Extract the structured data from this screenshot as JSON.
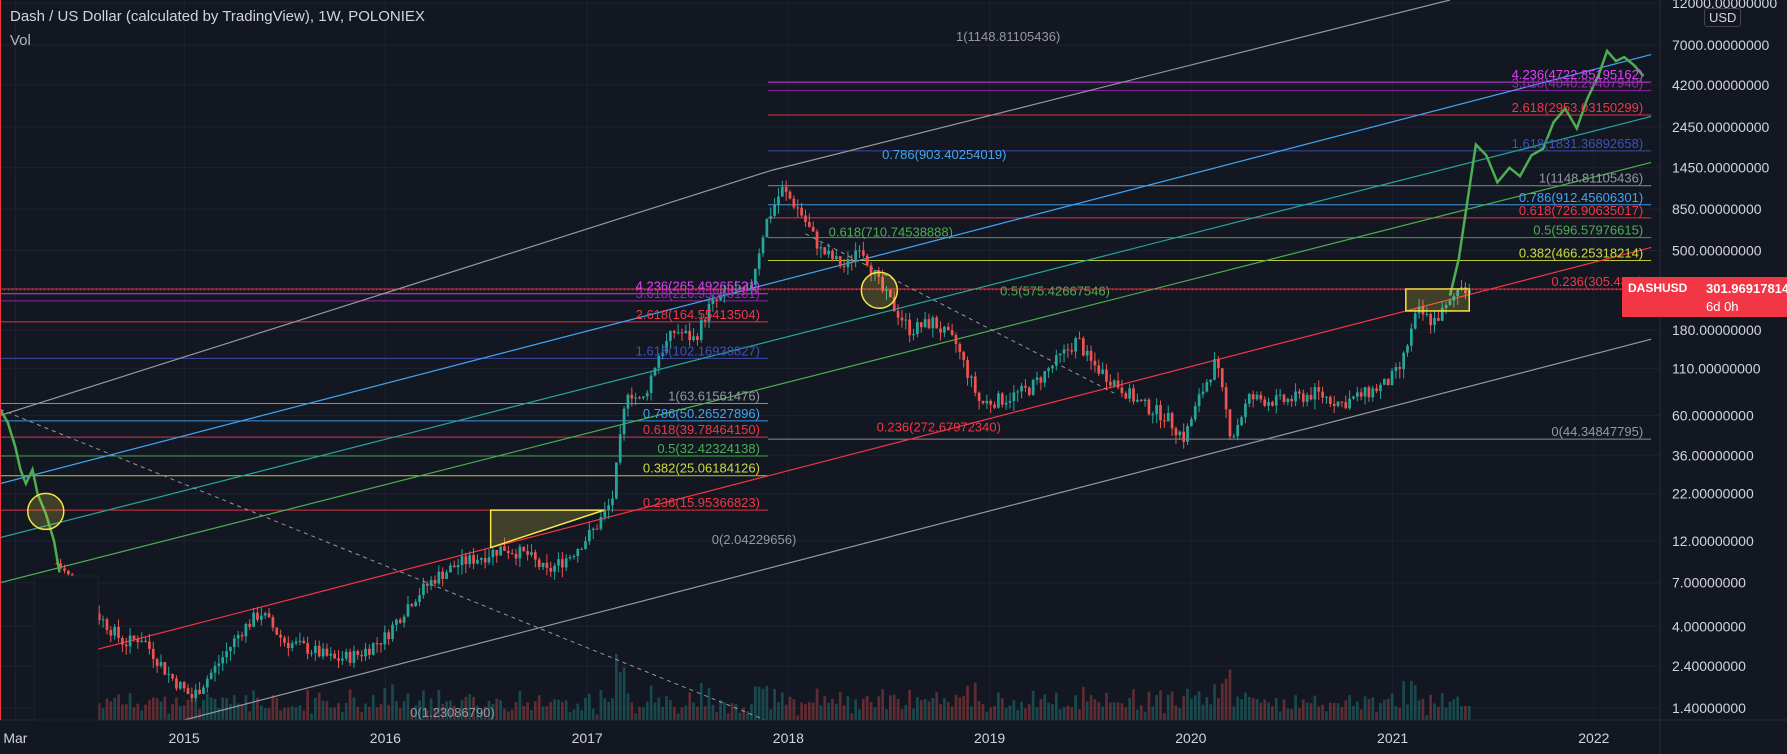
{
  "header": {
    "title": "Dash / US Dollar (calculated by TradingView), 1W, POLONIEX",
    "indicator": "Vol"
  },
  "currency_button": "USD",
  "price_tag": {
    "symbol": "DASHUSD",
    "price": "301.96917814",
    "countdown": "6d 0h",
    "color": "#f23645"
  },
  "colors": {
    "background": "#131722",
    "up": "#26a69a",
    "down": "#ef5350",
    "overlay_line": "#4caf50",
    "highlight": "#f5e642"
  },
  "chart_data": {
    "type": "candlestick",
    "y_scale": "log",
    "ylim": [
      1.2,
      12500
    ],
    "xlim": [
      "2014-02-01",
      "2022-05-01"
    ],
    "y_ticks": [
      {
        "value": 12000,
        "label": "12000.00000000"
      },
      {
        "value": 7000,
        "label": "7000.00000000"
      },
      {
        "value": 4200,
        "label": "4200.00000000"
      },
      {
        "value": 2450,
        "label": "2450.00000000"
      },
      {
        "value": 1450,
        "label": "1450.00000000"
      },
      {
        "value": 850,
        "label": "850.00000000"
      },
      {
        "value": 500,
        "label": "500.00000000"
      },
      {
        "value": 180,
        "label": "180.00000000"
      },
      {
        "value": 110,
        "label": "110.00000000"
      },
      {
        "value": 60,
        "label": "60.00000000"
      },
      {
        "value": 36,
        "label": "36.00000000"
      },
      {
        "value": 22,
        "label": "22.00000000"
      },
      {
        "value": 12,
        "label": "12.00000000"
      },
      {
        "value": 7,
        "label": "7.00000000"
      },
      {
        "value": 4,
        "label": "4.00000000"
      },
      {
        "value": 2.4,
        "label": "2.40000000"
      },
      {
        "value": 1.4,
        "label": "1.40000000"
      }
    ],
    "x_ticks": [
      {
        "date": "2014-03-01",
        "label": "Mar"
      },
      {
        "date": "2015-01-01",
        "label": "2015"
      },
      {
        "date": "2016-01-01",
        "label": "2016"
      },
      {
        "date": "2017-01-01",
        "label": "2017"
      },
      {
        "date": "2018-01-01",
        "label": "2018"
      },
      {
        "date": "2019-01-01",
        "label": "2019"
      },
      {
        "date": "2020-01-01",
        "label": "2020"
      },
      {
        "date": "2021-01-01",
        "label": "2021"
      },
      {
        "date": "2022-01-01",
        "label": "2022"
      }
    ],
    "price_path": [
      [
        "2014-05-15",
        9
      ],
      [
        "2014-06-15",
        7
      ],
      [
        "2014-08-01",
        4.5
      ],
      [
        "2014-09-15",
        3.2
      ],
      [
        "2014-10-15",
        3.5
      ],
      [
        "2014-12-01",
        2.2
      ],
      [
        "2015-01-15",
        1.6
      ],
      [
        "2015-03-01",
        2.4
      ],
      [
        "2015-04-15",
        3.8
      ],
      [
        "2015-05-20",
        4.8
      ],
      [
        "2015-07-01",
        3.3
      ],
      [
        "2015-08-15",
        3.0
      ],
      [
        "2015-10-01",
        2.6
      ],
      [
        "2015-11-15",
        2.8
      ],
      [
        "2016-01-01",
        3.5
      ],
      [
        "2016-02-15",
        5.5
      ],
      [
        "2016-04-01",
        7.5
      ],
      [
        "2016-05-15",
        9
      ],
      [
        "2016-07-01",
        10
      ],
      [
        "2016-08-01",
        11
      ],
      [
        "2016-09-15",
        10
      ],
      [
        "2016-10-20",
        8
      ],
      [
        "2016-12-01",
        10
      ],
      [
        "2017-01-15",
        14
      ],
      [
        "2017-02-15",
        20
      ],
      [
        "2017-03-15",
        85
      ],
      [
        "2017-04-10",
        70
      ],
      [
        "2017-05-10",
        130
      ],
      [
        "2017-06-10",
        180
      ],
      [
        "2017-07-15",
        160
      ],
      [
        "2017-08-10",
        240
      ],
      [
        "2017-09-15",
        300
      ],
      [
        "2017-10-20",
        280
      ],
      [
        "2017-11-20",
        700
      ],
      [
        "2017-12-20",
        1100
      ],
      [
        "2018-01-20",
        850
      ],
      [
        "2018-03-01",
        500
      ],
      [
        "2018-04-15",
        400
      ],
      [
        "2018-05-10",
        550
      ],
      [
        "2018-06-20",
        300
      ],
      [
        "2018-08-10",
        180
      ],
      [
        "2018-09-20",
        200
      ],
      [
        "2018-11-01",
        150
      ],
      [
        "2018-12-15",
        70
      ],
      [
        "2019-02-01",
        75
      ],
      [
        "2019-03-15",
        85
      ],
      [
        "2019-04-20",
        110
      ],
      [
        "2019-06-10",
        160
      ],
      [
        "2019-07-01",
        120
      ],
      [
        "2019-08-20",
        90
      ],
      [
        "2019-10-01",
        70
      ],
      [
        "2019-11-15",
        60
      ],
      [
        "2019-12-20",
        45
      ],
      [
        "2020-01-20",
        80
      ],
      [
        "2020-02-15",
        120
      ],
      [
        "2020-03-15",
        45
      ],
      [
        "2020-04-15",
        75
      ],
      [
        "2020-06-15",
        72
      ],
      [
        "2020-08-15",
        80
      ],
      [
        "2020-09-30",
        70
      ],
      [
        "2020-11-15",
        80
      ],
      [
        "2020-12-20",
        90
      ],
      [
        "2021-01-15",
        110
      ],
      [
        "2021-02-15",
        230
      ],
      [
        "2021-03-15",
        200
      ],
      [
        "2021-04-15",
        250
      ],
      [
        "2021-05-05",
        330
      ],
      [
        "2021-05-20",
        302
      ]
    ],
    "fib_levels": [
      {
        "label": "4.236(4722.85195162)",
        "value": 4350,
        "color": "#e040fb",
        "from": "2017-11-25",
        "to": "2022-04-15"
      },
      {
        "label": "3.618(4040.29407940)",
        "value": 3900,
        "color": "#9c27b0",
        "from": "2017-11-25",
        "to": "2022-04-15"
      },
      {
        "label": "2.618(2953.03150299)",
        "value": 2850,
        "color": "#f23645",
        "from": "2017-11-25",
        "to": "2022-04-15"
      },
      {
        "label": "1.618(1831.36892658)",
        "value": 1800,
        "color": "#3f51b5",
        "from": "2017-11-25",
        "to": "2022-04-15"
      },
      {
        "label": "1(1148.81105436)",
        "value": 1150,
        "color": "#9598a1",
        "from": "2017-11-25",
        "to": "2022-04-15"
      },
      {
        "label": "0.786(912.45606301)",
        "value": 900,
        "color": "#42a5f5",
        "from": "2017-11-25",
        "to": "2022-04-15"
      },
      {
        "label": "0.618(726.90635017)",
        "value": 760,
        "color": "#f23645",
        "from": "2017-11-25",
        "to": "2022-04-15"
      },
      {
        "label": "0.5(596.57976615)",
        "value": 590,
        "color": "#4caf50",
        "from": "2017-11-25",
        "to": "2022-04-15"
      },
      {
        "label": "0.382(466.25318214)",
        "value": 440,
        "color": "#cddc39",
        "from": "2017-11-25",
        "to": "2022-04-15"
      },
      {
        "label": "0.236(305.48...)",
        "value": 305,
        "color": "#f23645",
        "from": "2014-02-01",
        "to": "2022-04-15"
      },
      {
        "label": "0(44.34847795)",
        "value": 44.3,
        "color": "#9598a1",
        "from": "2017-11-25",
        "to": "2022-04-15"
      },
      {
        "label": "4.236(265.49265531)",
        "value": 287,
        "color": "#e040fb",
        "from": "2014-02-01",
        "to": "2017-11-25"
      },
      {
        "label": "3.618(226.93888181)",
        "value": 262,
        "color": "#9c27b0",
        "from": "2014-02-01",
        "to": "2017-11-25"
      },
      {
        "label": "2.618(164.55413504)",
        "value": 200,
        "color": "#f23645",
        "from": "2014-02-01",
        "to": "2017-11-25"
      },
      {
        "label": "1.618(102.16938827)",
        "value": 125,
        "color": "#3f51b5",
        "from": "2014-02-01",
        "to": "2017-11-25"
      },
      {
        "label": "1(63.61561476)",
        "value": 70,
        "color": "#9598a1",
        "from": "2014-02-01",
        "to": "2017-11-25"
      },
      {
        "label": "0.786(50.26527896)",
        "value": 56,
        "color": "#42a5f5",
        "from": "2014-02-01",
        "to": "2017-11-25"
      },
      {
        "label": "0.618(39.78464150)",
        "value": 45.5,
        "color": "#f23645",
        "from": "2014-02-01",
        "to": "2017-11-25"
      },
      {
        "label": "0.5(32.42324138)",
        "value": 35.7,
        "color": "#4caf50",
        "from": "2014-02-01",
        "to": "2017-11-25"
      },
      {
        "label": "0.382(25.06184126)",
        "value": 27.7,
        "color": "#cddc39",
        "from": "2014-02-01",
        "to": "2017-11-25"
      },
      {
        "label": "0.236(15.95366823)",
        "value": 17.8,
        "color": "#f23645",
        "from": "2014-02-01",
        "to": "2017-11-25"
      }
    ],
    "floating_labels": [
      {
        "text": "1(1148.81105436)",
        "date": "2018-11-01",
        "value": 7400,
        "color": "#9598a1"
      },
      {
        "text": "0.786(903.40254019)",
        "date": "2018-06-20",
        "value": 1620,
        "color": "#42a5f5"
      },
      {
        "text": "0.618(710.74538888)",
        "date": "2018-03-15",
        "value": 600,
        "color": "#4caf50"
      },
      {
        "text": "0.5(575.42667546)",
        "date": "2019-01-20",
        "value": 280,
        "color": "#4caf50"
      },
      {
        "text": "0.236(272.67972340)",
        "date": "2018-06-10",
        "value": 49,
        "color": "#f23645"
      },
      {
        "text": "0(2.04229656)",
        "date": "2017-08-15",
        "value": 11.5,
        "color": "#9598a1"
      },
      {
        "text": "0(1.23086790)",
        "date": "2016-02-15",
        "value": 1.25,
        "color": "#9598a1"
      }
    ],
    "channel_lines": [
      {
        "from": [
          "2014-02-01",
          60
        ],
        "to": [
          "2017-12-01",
          1400
        ],
        "color": "#9598a1"
      },
      {
        "from": [
          "2017-12-01",
          1400
        ],
        "to": [
          "2021-04-15",
          12500
        ],
        "color": "#9598a1"
      },
      {
        "from": [
          "2014-02-01",
          25
        ],
        "to": [
          "2022-04-15",
          6200
        ],
        "color": "#42a5f5"
      },
      {
        "from": [
          "2014-02-01",
          12.5
        ],
        "to": [
          "2022-04-15",
          2800
        ],
        "color": "#26a69a"
      },
      {
        "from": [
          "2014-02-01",
          7.0
        ],
        "to": [
          "2022-04-15",
          1550
        ],
        "color": "#4caf50"
      },
      {
        "from": [
          "2014-05-15",
          2.6
        ],
        "to": [
          "2022-04-15",
          520
        ],
        "color": "#f23645"
      },
      {
        "from": [
          "2015-01-01",
          1.2
        ],
        "to": [
          "2022-04-15",
          160
        ],
        "color": "#9598a1"
      }
    ],
    "dashed_lines": [
      {
        "from": [
          "2014-02-01",
          65
        ],
        "to": [
          "2017-11-20",
          1.2
        ]
      },
      {
        "from": [
          "2018-02-01",
          620
        ],
        "to": [
          "2019-08-15",
          80
        ]
      }
    ],
    "overlay_path": [
      [
        "2014-02-01",
        65
      ],
      [
        "2014-02-15",
        55
      ],
      [
        "2014-03-01",
        40
      ],
      [
        "2014-03-10",
        30
      ],
      [
        "2014-03-20",
        25
      ],
      [
        "2014-04-01",
        30
      ],
      [
        "2014-04-10",
        22
      ],
      [
        "2014-04-25",
        17
      ],
      [
        "2014-05-10",
        12
      ],
      [
        "2014-05-20",
        8
      ],
      [
        "2021-04-15",
        280
      ],
      [
        "2021-05-01",
        450
      ],
      [
        "2021-05-20",
        1100
      ],
      [
        "2021-06-01",
        1950
      ],
      [
        "2021-06-20",
        1700
      ],
      [
        "2021-07-10",
        1200
      ],
      [
        "2021-08-01",
        1450
      ],
      [
        "2021-08-20",
        1300
      ],
      [
        "2021-09-10",
        1700
      ],
      [
        "2021-10-01",
        1850
      ],
      [
        "2021-10-20",
        2600
      ],
      [
        "2021-11-10",
        3100
      ],
      [
        "2021-12-01",
        2400
      ],
      [
        "2021-12-20",
        3500
      ],
      [
        "2022-01-10",
        4800
      ],
      [
        "2022-01-25",
        6500
      ],
      [
        "2022-02-10",
        5700
      ],
      [
        "2022-02-25",
        6000
      ],
      [
        "2022-03-15",
        5400
      ],
      [
        "2022-04-01",
        4700
      ]
    ],
    "highlight_circles": [
      {
        "date": "2014-04-25",
        "value": 17.5
      },
      {
        "date": "2018-06-15",
        "value": 300
      }
    ],
    "highlight_boxes": [
      {
        "from": [
          "2016-07-10",
          17.8
        ],
        "to": [
          "2017-02-01",
          11
        ],
        "shape": "triangle"
      },
      {
        "from": [
          "2021-01-25",
          305
        ],
        "to": [
          "2021-05-20",
          230
        ],
        "shape": "box"
      }
    ]
  }
}
